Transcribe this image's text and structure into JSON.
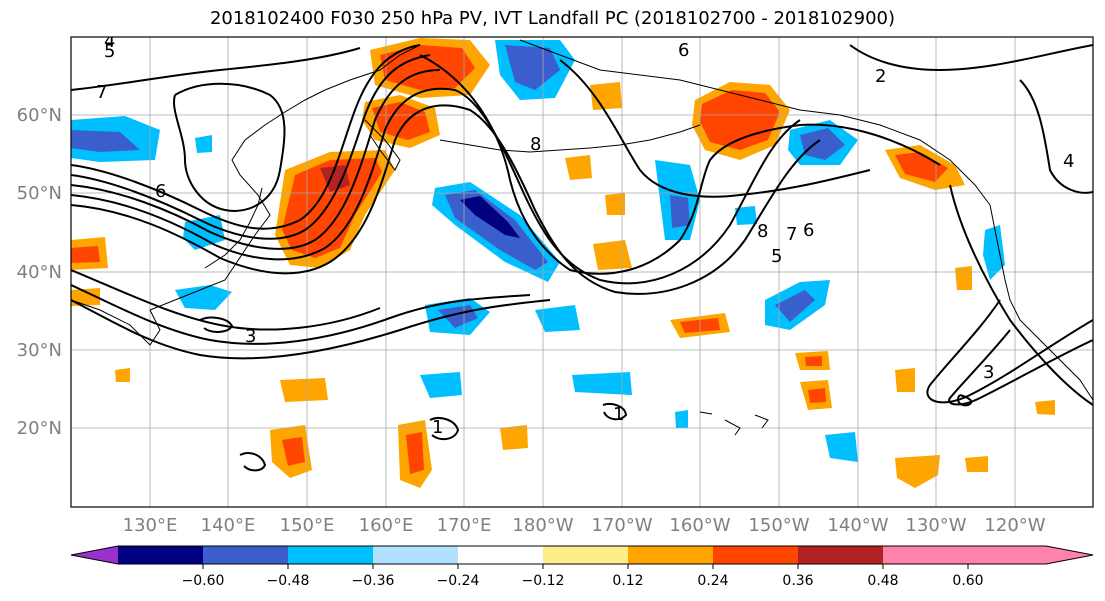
{
  "title": "2018102400 F030 250 hPa PV, IVT Landfall PC (2018102700 - 2018102900)",
  "lat_labels": [
    "60°N",
    "50°N",
    "40°N",
    "30°N",
    "20°N"
  ],
  "lon_labels": [
    "130°E",
    "140°E",
    "150°E",
    "160°E",
    "170°E",
    "180°W",
    "170°W",
    "160°W",
    "150°W",
    "140°W",
    "130°W",
    "120°W"
  ],
  "colorbar": {
    "colors": [
      "#9932CC",
      "#000080",
      "#3A5FCD",
      "#00BFFF",
      "#B0E2FF",
      "#FFFFFF",
      "#FFEC8B",
      "#FFA500",
      "#FF4500",
      "#B22222",
      "#FF82AB"
    ],
    "tick_labels": [
      "−0.60",
      "−0.48",
      "−0.36",
      "−0.24",
      "−0.12",
      "0.12",
      "0.24",
      "0.36",
      "0.48",
      "0.60"
    ]
  },
  "contour_labels": [
    "4",
    "5",
    "7",
    "6",
    "8",
    "3",
    "2",
    "6",
    "8",
    "7",
    "6",
    "5",
    "3",
    "4",
    "1",
    "1"
  ]
}
